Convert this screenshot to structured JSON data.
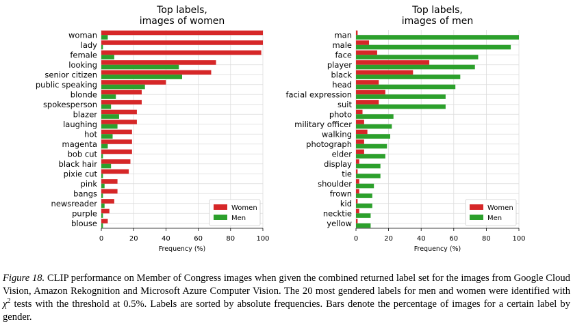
{
  "colors": {
    "women": "#d62728",
    "men": "#2ca02c",
    "grid": "#dcdcdc",
    "axis": "#000000"
  },
  "chart_data": [
    {
      "type": "bar",
      "orientation": "horizontal",
      "title_lines": [
        "Top labels,",
        "images of women"
      ],
      "xlabel": "Frequency (%)",
      "xlim": [
        0,
        100
      ],
      "xticks": [
        "0",
        "20",
        "40",
        "60",
        "80",
        "100"
      ],
      "legend_position": "bottom-right",
      "categories": [
        "woman",
        "lady",
        "female",
        "looking",
        "senior citizen",
        "public speaking",
        "blonde",
        "spokesperson",
        "blazer",
        "laughing",
        "hot",
        "magenta",
        "bob cut",
        "black hair",
        "pixie cut",
        "pink",
        "bangs",
        "newsreader",
        "purple",
        "blouse"
      ],
      "series": [
        {
          "name": "Women",
          "values": [
            100,
            100,
            99,
            71,
            68,
            40,
            25,
            25,
            22,
            22,
            19,
            19,
            19,
            18,
            17,
            10,
            10,
            8,
            5,
            4
          ]
        },
        {
          "name": "Men",
          "values": [
            4,
            1,
            8,
            48,
            50,
            27,
            9,
            6,
            11,
            10,
            7,
            4,
            1,
            6,
            1,
            2,
            1,
            2,
            1,
            1
          ]
        }
      ]
    },
    {
      "type": "bar",
      "orientation": "horizontal",
      "title_lines": [
        "Top labels,",
        "images of men"
      ],
      "xlabel": "Frequency (%)",
      "xlim": [
        0,
        100
      ],
      "xticks": [
        "0",
        "20",
        "40",
        "60",
        "80",
        "100"
      ],
      "legend_position": "bottom-right",
      "categories": [
        "man",
        "male",
        "face",
        "player",
        "black",
        "head",
        "facial expression",
        "suit",
        "photo",
        "military officer",
        "walking",
        "photograph",
        "elder",
        "display",
        "tie",
        "shoulder",
        "frown",
        "kid",
        "necktie",
        "yellow"
      ],
      "series": [
        {
          "name": "Women",
          "values": [
            1,
            8,
            13,
            45,
            35,
            14,
            18,
            14,
            4,
            5,
            7,
            5,
            5,
            2,
            1,
            2,
            2,
            1,
            2,
            1
          ]
        },
        {
          "name": "Men",
          "values": [
            100,
            95,
            75,
            73,
            64,
            61,
            55,
            55,
            23,
            22,
            21,
            19,
            18,
            15,
            15,
            11,
            10,
            10,
            9,
            9
          ]
        }
      ]
    }
  ],
  "caption": {
    "label": "Figure 18.",
    "text_1": " CLIP performance on Member of Congress images when given the combined returned label set for the images from Google Cloud Vision, Amazon Rekognition and Microsoft Azure Computer Vision. The 20 most gendered labels for men and women were identified with ",
    "chi": "χ",
    "superscript": "2",
    "text_2": " tests with the threshold at 0.5%. Labels are sorted by absolute frequencies. Bars denote the percentage of images for a certain label by gender."
  }
}
